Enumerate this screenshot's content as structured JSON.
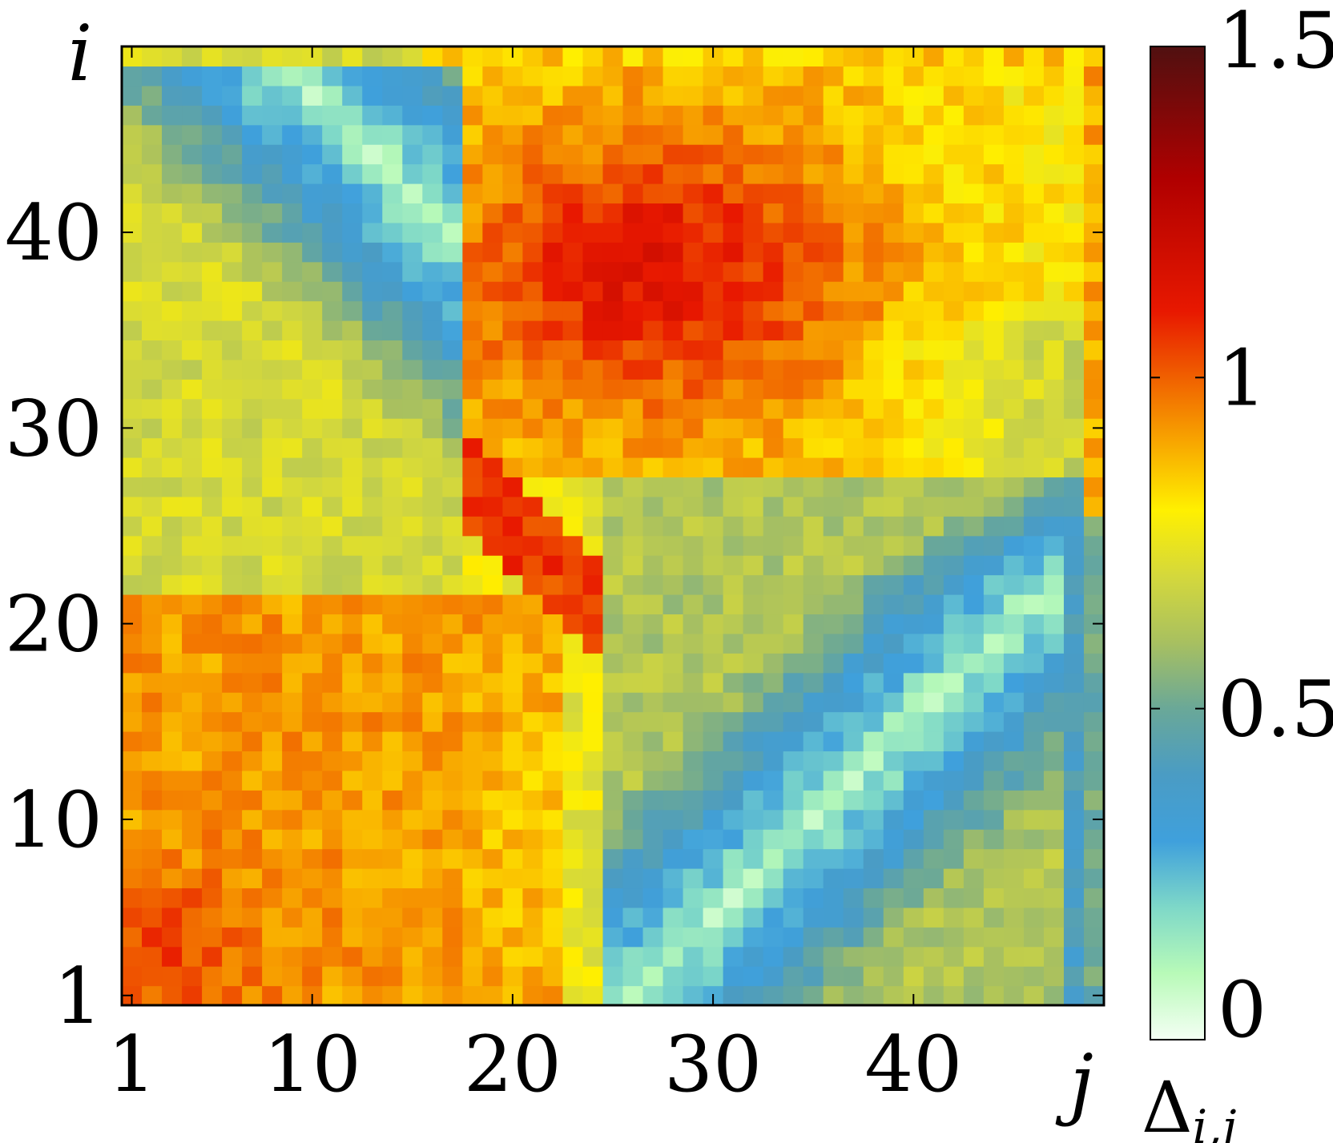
{
  "chart_data": {
    "type": "heatmap",
    "title": "",
    "xlabel": "j",
    "ylabel": "i",
    "x_range": [
      1,
      49
    ],
    "y_range": [
      1,
      49
    ],
    "x_ticks": [
      1,
      10,
      20,
      30,
      40
    ],
    "y_ticks": [
      1,
      10,
      20,
      30,
      40
    ],
    "colorbar": {
      "label": "Δi,j",
      "label_main": "Δ",
      "label_sub": "i,j",
      "range": [
        0,
        1.5
      ],
      "ticks": [
        0,
        0.5,
        1,
        1.5
      ],
      "tick_labels": [
        "0",
        "0.5",
        "1",
        "1.5"
      ],
      "colormap": [
        [
          0.0,
          "#f4fff4"
        ],
        [
          0.1,
          "#b8fab8"
        ],
        [
          0.2,
          "#7ed8c8"
        ],
        [
          0.3,
          "#3fa0dc"
        ],
        [
          0.4,
          "#4a9cc4"
        ],
        [
          0.5,
          "#6aa898"
        ],
        [
          0.6,
          "#a8c060"
        ],
        [
          0.7,
          "#d4d83c"
        ],
        [
          0.8,
          "#fff000"
        ],
        [
          0.9,
          "#f8a800"
        ],
        [
          1.0,
          "#f06000"
        ],
        [
          1.1,
          "#e81800"
        ],
        [
          1.3,
          "#b00000"
        ],
        [
          1.5,
          "#501010"
        ]
      ]
    },
    "note": "Δi,j values are approximate; visible pattern is a low-value diagonal band along i≈j in two blocks with high-value off-diagonal regions.",
    "regions": [
      {
        "description": "bottom-left block i,j in 1..20 (off-diagonal high)",
        "level": 0.9
      },
      {
        "description": "top-right block i in 28..49, j in 18..48",
        "level": 1.0
      },
      {
        "description": "central peak around i≈38, j≈27",
        "level": 1.12
      },
      {
        "description": "lower-right diagonal band i≈j-25 for j 27..46",
        "level": 0.1
      },
      {
        "description": "upper-left diagonal band i≈57-j for j 4..14",
        "level": 0.1
      }
    ]
  }
}
